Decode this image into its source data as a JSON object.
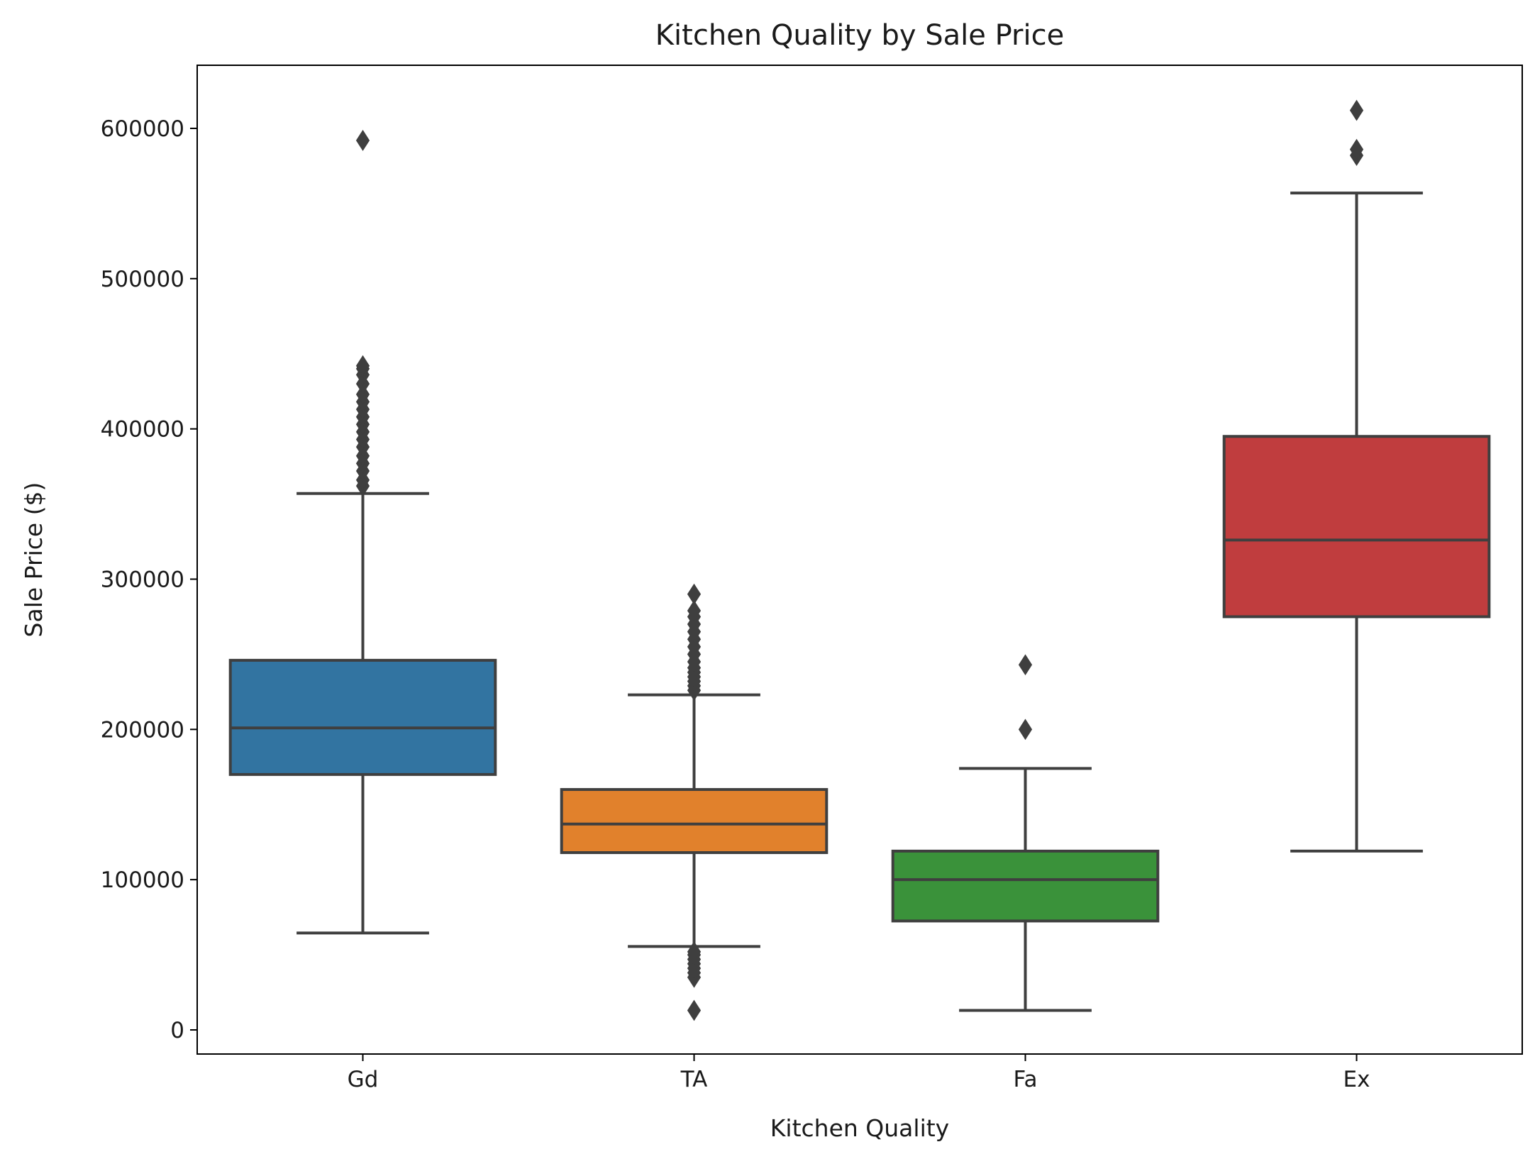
{
  "chart_data": {
    "type": "box",
    "title": "Kitchen Quality by Sale Price",
    "xlabel": "Kitchen Quality",
    "ylabel": "Sale Price ($)",
    "ylim": [
      -16000,
      642000
    ],
    "y_ticks": [
      0,
      100000,
      200000,
      300000,
      400000,
      500000,
      600000
    ],
    "y_tick_labels": [
      "0",
      "100000",
      "200000",
      "300000",
      "400000",
      "500000",
      "600000"
    ],
    "categories": [
      "Gd",
      "TA",
      "Fa",
      "Ex"
    ],
    "grid": false,
    "legend": "none",
    "colors": [
      "#3274a1",
      "#e1812c",
      "#3a923a",
      "#c03d3e"
    ],
    "line_color": "#3f3f3f",
    "boxes": [
      {
        "category": "Gd",
        "whisker_low": 64500,
        "q1": 170000,
        "median": 201000,
        "q3": 246000,
        "whisker_high": 357000,
        "outliers": [
          362000,
          366000,
          372000,
          377000,
          382000,
          388000,
          393000,
          398000,
          403000,
          408000,
          413000,
          418000,
          423000,
          430000,
          436000,
          440000,
          442000,
          592000
        ]
      },
      {
        "category": "TA",
        "whisker_low": 55500,
        "q1": 118000,
        "median": 137000,
        "q3": 160000,
        "whisker_high": 223000,
        "outliers": [
          13000,
          35000,
          38000,
          41000,
          44000,
          47000,
          50000,
          52000,
          226000,
          229000,
          232000,
          235000,
          238000,
          241000,
          245000,
          250000,
          255000,
          260000,
          265000,
          270000,
          275000,
          279000,
          290000
        ]
      },
      {
        "category": "Fa",
        "whisker_low": 13000,
        "q1": 72500,
        "median": 100000,
        "q3": 119000,
        "whisker_high": 174000,
        "outliers": [
          200000,
          243000
        ]
      },
      {
        "category": "Ex",
        "whisker_low": 119000,
        "q1": 275000,
        "median": 326000,
        "q3": 395000,
        "whisker_high": 557000,
        "outliers": [
          582000,
          586000,
          612000
        ]
      }
    ]
  }
}
